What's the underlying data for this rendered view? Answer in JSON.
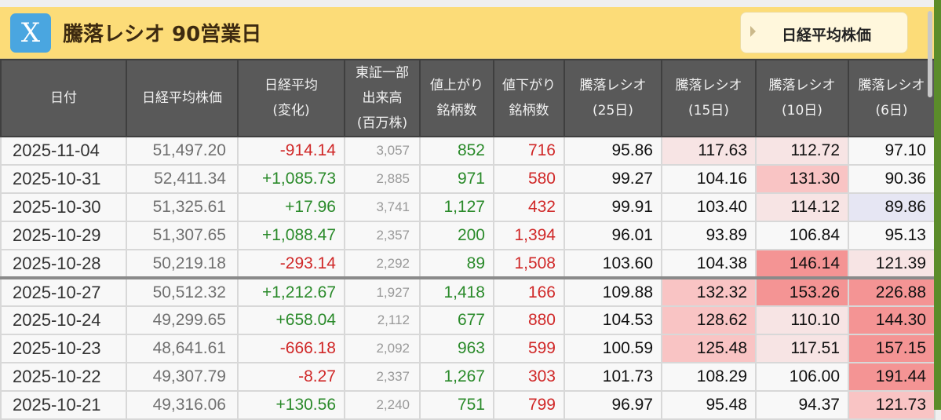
{
  "title": "騰落レシオ 90営業日",
  "logo": "X",
  "nav_button": "日経平均株価",
  "headers": [
    [
      "日付"
    ],
    [
      "日経平均株価"
    ],
    [
      "日経平均",
      "(変化)"
    ],
    [
      "東証一部",
      "出来高",
      "(百万株)"
    ],
    [
      "値上がり",
      "銘柄数"
    ],
    [
      "値下がり",
      "銘柄数"
    ],
    [
      "騰落レシオ",
      "(25日)"
    ],
    [
      "騰落レシオ",
      "(15日)"
    ],
    [
      "騰落レシオ",
      "(10日)"
    ],
    [
      "騰落レシオ",
      "(6日)"
    ]
  ],
  "colors": {
    "up": "#2a8a2a",
    "down": "#d02828",
    "light": "#f7e4e4",
    "medium": "#f9c4c4",
    "strong": "#f49494",
    "low": "#e6e6f3",
    "title_bar": "#fcdc78"
  },
  "rows": [
    {
      "date": "2025-11-04",
      "price": "51,497.20",
      "change": "-914.14",
      "volume": "3,057",
      "advances": "852",
      "declines": "716",
      "r25": "95.86",
      "r15": "117.63",
      "r10": "112.72",
      "r6": "97.10",
      "heat": {
        "r15": "light",
        "r10": "light"
      }
    },
    {
      "date": "2025-10-31",
      "price": "52,411.34",
      "change": "+1,085.73",
      "volume": "2,885",
      "advances": "971",
      "declines": "580",
      "r25": "99.27",
      "r15": "104.16",
      "r10": "131.30",
      "r6": "90.36",
      "heat": {
        "r10": "medium"
      }
    },
    {
      "date": "2025-10-30",
      "price": "51,325.61",
      "change": "+17.96",
      "volume": "3,741",
      "advances": "1,127",
      "declines": "432",
      "r25": "99.91",
      "r15": "103.40",
      "r10": "114.12",
      "r6": "89.86",
      "heat": {
        "r10": "light",
        "r6": "low"
      }
    },
    {
      "date": "2025-10-29",
      "price": "51,307.65",
      "change": "+1,088.47",
      "volume": "2,357",
      "advances": "200",
      "declines": "1,394",
      "r25": "96.01",
      "r15": "93.89",
      "r10": "106.84",
      "r6": "95.13",
      "heat": {}
    },
    {
      "date": "2025-10-28",
      "price": "50,219.18",
      "change": "-293.14",
      "volume": "2,292",
      "advances": "89",
      "declines": "1,508",
      "r25": "103.60",
      "r15": "104.38",
      "r10": "146.14",
      "r6": "121.39",
      "heat": {
        "r10": "strong",
        "r6": "light"
      }
    },
    {
      "date": "2025-10-27",
      "price": "50,512.32",
      "change": "+1,212.67",
      "volume": "1,927",
      "advances": "1,418",
      "declines": "166",
      "r25": "109.88",
      "r15": "132.32",
      "r10": "153.26",
      "r6": "226.88",
      "heat": {
        "r15": "medium",
        "r10": "strong",
        "r6": "strong"
      },
      "week_start": true
    },
    {
      "date": "2025-10-24",
      "price": "49,299.65",
      "change": "+658.04",
      "volume": "2,112",
      "advances": "677",
      "declines": "880",
      "r25": "104.53",
      "r15": "128.62",
      "r10": "110.10",
      "r6": "144.30",
      "heat": {
        "r15": "medium",
        "r10": "light",
        "r6": "strong"
      }
    },
    {
      "date": "2025-10-23",
      "price": "48,641.61",
      "change": "-666.18",
      "volume": "2,092",
      "advances": "963",
      "declines": "599",
      "r25": "100.59",
      "r15": "125.48",
      "r10": "117.51",
      "r6": "157.15",
      "heat": {
        "r15": "medium",
        "r10": "light",
        "r6": "strong"
      }
    },
    {
      "date": "2025-10-22",
      "price": "49,307.79",
      "change": "-8.27",
      "volume": "2,337",
      "advances": "1,267",
      "declines": "303",
      "r25": "101.73",
      "r15": "108.29",
      "r10": "106.00",
      "r6": "191.44",
      "heat": {
        "r6": "strong"
      }
    },
    {
      "date": "2025-10-21",
      "price": "49,316.06",
      "change": "+130.56",
      "volume": "2,240",
      "advances": "751",
      "declines": "799",
      "r25": "96.97",
      "r15": "95.48",
      "r10": "94.37",
      "r6": "121.73",
      "heat": {
        "r6": "medium"
      }
    }
  ]
}
